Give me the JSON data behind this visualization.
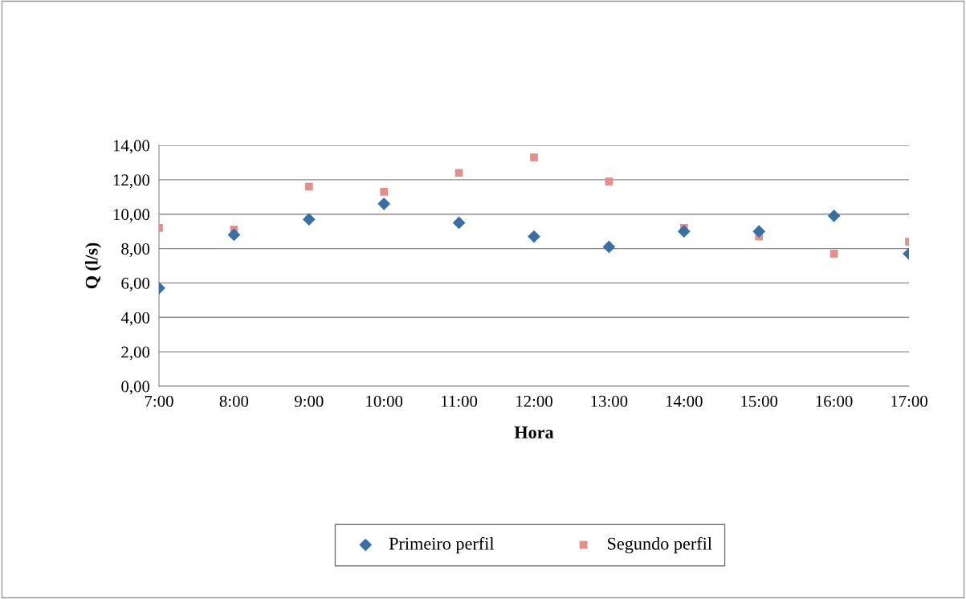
{
  "chart_data": {
    "type": "scatter",
    "xlabel": "Hora",
    "ylabel": "Q (l/s)",
    "x": [
      7,
      8,
      9,
      10,
      11,
      12,
      13,
      14,
      15,
      16,
      17
    ],
    "series": [
      {
        "name": "Primeiro perfil",
        "color": "#3a6fa5",
        "marker": "diamond",
        "values": [
          5.7,
          8.8,
          9.7,
          10.6,
          9.5,
          8.7,
          8.1,
          9.0,
          9.0,
          9.9,
          7.7
        ]
      },
      {
        "name": "Segundo perfil",
        "color": "#e3908c",
        "marker": "square",
        "values": [
          9.2,
          9.1,
          11.6,
          11.3,
          12.4,
          13.3,
          11.9,
          9.2,
          8.7,
          7.7,
          8.4
        ]
      }
    ],
    "xlim": [
      7,
      17
    ],
    "xticks": [
      {
        "value": 7,
        "label": "7:00"
      },
      {
        "value": 8,
        "label": "8:00"
      },
      {
        "value": 9,
        "label": "9:00"
      },
      {
        "value": 10,
        "label": "10:00"
      },
      {
        "value": 11,
        "label": "11:00"
      },
      {
        "value": 12,
        "label": "12:00"
      },
      {
        "value": 13,
        "label": "13:00"
      },
      {
        "value": 14,
        "label": "14:00"
      },
      {
        "value": 15,
        "label": "15:00"
      },
      {
        "value": 16,
        "label": "16:00"
      },
      {
        "value": 17,
        "label": "17:00"
      }
    ],
    "ylim": [
      0,
      14
    ],
    "yticks": [
      {
        "value": 0,
        "label": "0,00"
      },
      {
        "value": 2,
        "label": "2,00"
      },
      {
        "value": 4,
        "label": "4,00"
      },
      {
        "value": 6,
        "label": "6,00"
      },
      {
        "value": 8,
        "label": "8,00"
      },
      {
        "value": 10,
        "label": "10,00"
      },
      {
        "value": 12,
        "label": "12,00"
      },
      {
        "value": 14,
        "label": "14,00"
      }
    ],
    "grid": "y",
    "legend": "bottom"
  }
}
